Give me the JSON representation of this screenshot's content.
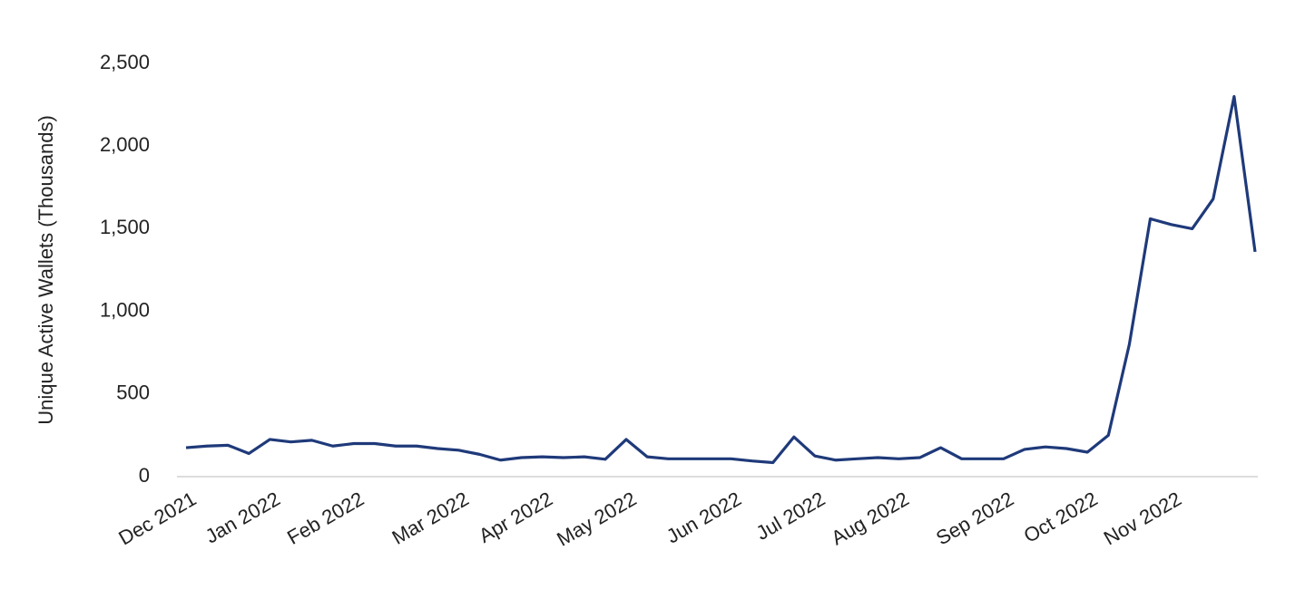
{
  "chart_data": {
    "type": "line",
    "y_label": "Unique Active Wallets (Thousands)",
    "categories": [
      "Dec 2021",
      null,
      null,
      null,
      "Jan 2022",
      null,
      null,
      null,
      "Feb 2022",
      null,
      null,
      null,
      null,
      "Mar 2022",
      null,
      null,
      null,
      "Apr 2022",
      null,
      null,
      null,
      "May 2022",
      null,
      null,
      null,
      null,
      "Jun 2022",
      null,
      null,
      null,
      "Jul 2022",
      null,
      null,
      null,
      "Aug 2022",
      null,
      null,
      null,
      null,
      "Sep 2022",
      null,
      null,
      null,
      "Oct 2022",
      null,
      null,
      null,
      "Nov 2022",
      null,
      null,
      null,
      null
    ],
    "values": [
      175,
      185,
      190,
      140,
      225,
      210,
      220,
      185,
      200,
      200,
      185,
      185,
      170,
      160,
      135,
      100,
      115,
      120,
      115,
      120,
      105,
      225,
      120,
      108,
      108,
      108,
      108,
      95,
      85,
      240,
      125,
      100,
      108,
      115,
      108,
      115,
      175,
      108,
      108,
      108,
      165,
      180,
      170,
      148,
      250,
      800,
      1560,
      1525,
      1500,
      1680,
      2300,
      1360
    ],
    "color": "#1f3a7a",
    "ylim": [
      0,
      2500
    ],
    "yticks": [
      0,
      500,
      {
        "value": 1000,
        "label": "1,000"
      },
      {
        "value": 1500,
        "label": "1,500"
      },
      {
        "value": 2000,
        "label": "2,000"
      },
      {
        "value": 2500,
        "label": "2,500"
      }
    ]
  }
}
